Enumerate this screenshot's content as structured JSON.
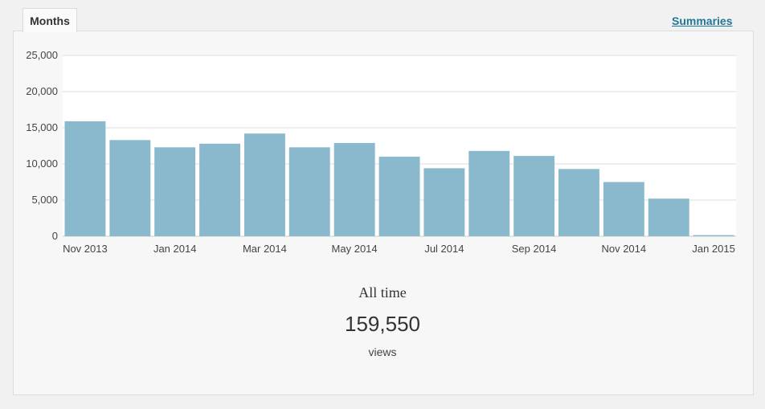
{
  "tabs": {
    "active": "Months",
    "summaries_link": "Summaries"
  },
  "colors": {
    "bar": "#8ab8cc",
    "grid": "#dddddd",
    "link": "#21759b"
  },
  "chart_data": {
    "type": "bar",
    "categories": [
      "Nov 2013",
      "Dec 2013",
      "Jan 2014",
      "Feb 2014",
      "Mar 2014",
      "Apr 2014",
      "May 2014",
      "Jun 2014",
      "Jul 2014",
      "Aug 2014",
      "Sep 2014",
      "Oct 2014",
      "Nov 2014",
      "Dec 2014",
      "Jan 2015"
    ],
    "values": [
      15900,
      13300,
      12300,
      12800,
      14200,
      12300,
      12900,
      11000,
      9400,
      11800,
      11100,
      9300,
      7500,
      5200,
      150
    ],
    "xtick_labels": [
      "Nov 2013",
      "Jan 2014",
      "Mar 2014",
      "May 2014",
      "Jul 2014",
      "Sep 2014",
      "Nov 2014",
      "Jan 2015"
    ],
    "ytick_labels": [
      "25,000",
      "20,000",
      "15,000",
      "10,000",
      "5,000",
      "0"
    ],
    "yticks": [
      25000,
      20000,
      15000,
      10000,
      5000,
      0
    ],
    "ylim": [
      0,
      25000
    ],
    "grid": true
  },
  "summary": {
    "title": "All time",
    "total": "159,550",
    "unit": "views"
  }
}
